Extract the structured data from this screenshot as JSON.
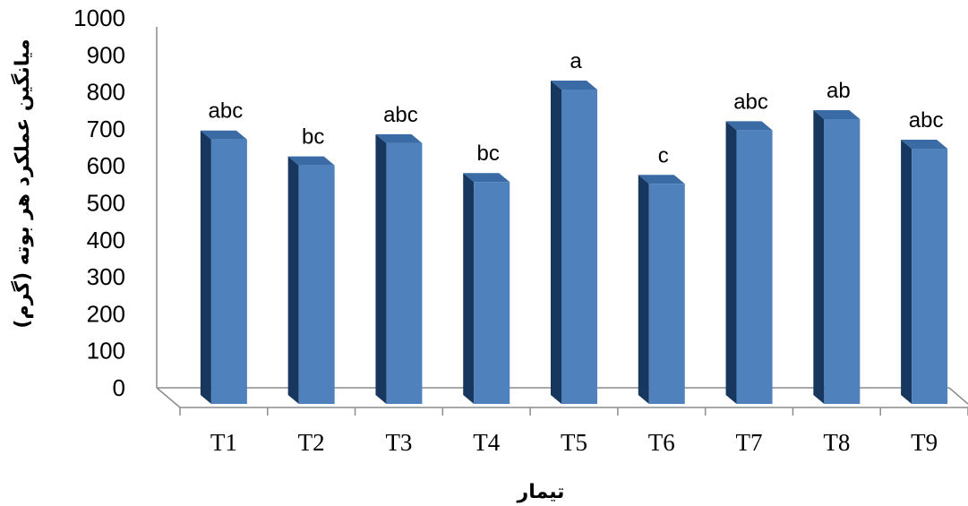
{
  "chart_data": {
    "type": "bar",
    "categories": [
      "T1",
      "T2",
      "T3",
      "T4",
      "T5",
      "T6",
      "T7",
      "T8",
      "T9"
    ],
    "values": [
      715,
      645,
      705,
      600,
      850,
      595,
      740,
      770,
      690
    ],
    "data_labels": [
      "abc",
      "bc",
      "abc",
      "bc",
      "a",
      "c",
      "abc",
      "ab",
      "abc"
    ],
    "xlabel": "تیمار",
    "ylabel": "میانگین عملکرد هر بوته (گرم)",
    "ylim": [
      0,
      1000
    ],
    "yticks": [
      "0",
      "100",
      "200",
      "300",
      "400",
      "500",
      "600",
      "700",
      "800",
      "900",
      "1000"
    ],
    "grid": false,
    "legend": "none",
    "colors": {
      "bar_front": "#4f81bd",
      "bar_side": "#17375e",
      "bar_top": "#3a6ba5",
      "axis": "#888888"
    }
  }
}
